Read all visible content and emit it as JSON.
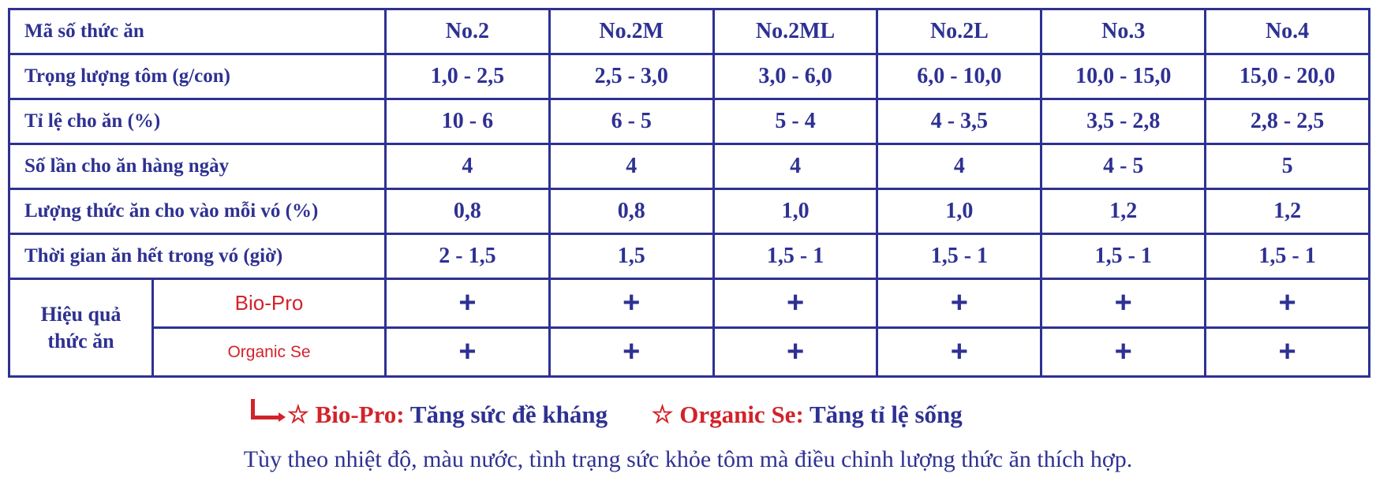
{
  "colors": {
    "text": "#2e3192",
    "accent": "#d2232a"
  },
  "table": {
    "header": {
      "label": "Mã số thức ăn",
      "codes": [
        "No.2",
        "No.2M",
        "No.2ML",
        "No.2L",
        "No.3",
        "No.4"
      ]
    },
    "rows": [
      {
        "label": "Trọng lượng tôm (g/con)",
        "values": [
          "1,0 - 2,5",
          "2,5 - 3,0",
          "3,0 - 6,0",
          "6,0 - 10,0",
          "10,0 - 15,0",
          "15,0 - 20,0"
        ]
      },
      {
        "label": "Tỉ lệ cho ăn (%)",
        "values": [
          "10 - 6",
          "6 - 5",
          "5 - 4",
          "4 - 3,5",
          "3,5 - 2,8",
          "2,8 - 2,5"
        ]
      },
      {
        "label": "Số lần cho ăn hàng ngày",
        "values": [
          "4",
          "4",
          "4",
          "4",
          "4 - 5",
          "5"
        ]
      },
      {
        "label": "Lượng thức ăn cho vào mỗi vó (%)",
        "values": [
          "0,8",
          "0,8",
          "1,0",
          "1,0",
          "1,2",
          "1,2"
        ]
      },
      {
        "label": "Thời gian ăn hết trong vó (giờ)",
        "values": [
          "2 - 1,5",
          "1,5",
          "1,5 - 1",
          "1,5 - 1",
          "1,5 - 1",
          "1,5 - 1"
        ]
      }
    ],
    "effect": {
      "label_line1": "Hiệu quả",
      "label_line2": "thức ăn",
      "subrows": [
        {
          "label": "Bio-Pro",
          "values": [
            "+",
            "+",
            "+",
            "+",
            "+",
            "+"
          ]
        },
        {
          "label": "Organic Se",
          "values": [
            "+",
            "+",
            "+",
            "+",
            "+",
            "+"
          ]
        }
      ]
    }
  },
  "legend": {
    "star": "☆",
    "bio_name": "Bio-Pro:",
    "bio_text": "Tăng sức đề kháng",
    "se_name": "Organic Se:",
    "se_text": "Tăng tỉ lệ sống"
  },
  "note": "Tùy theo nhiệt độ, màu nước, tình trạng sức khỏe tôm mà điều chỉnh lượng thức ăn thích hợp."
}
